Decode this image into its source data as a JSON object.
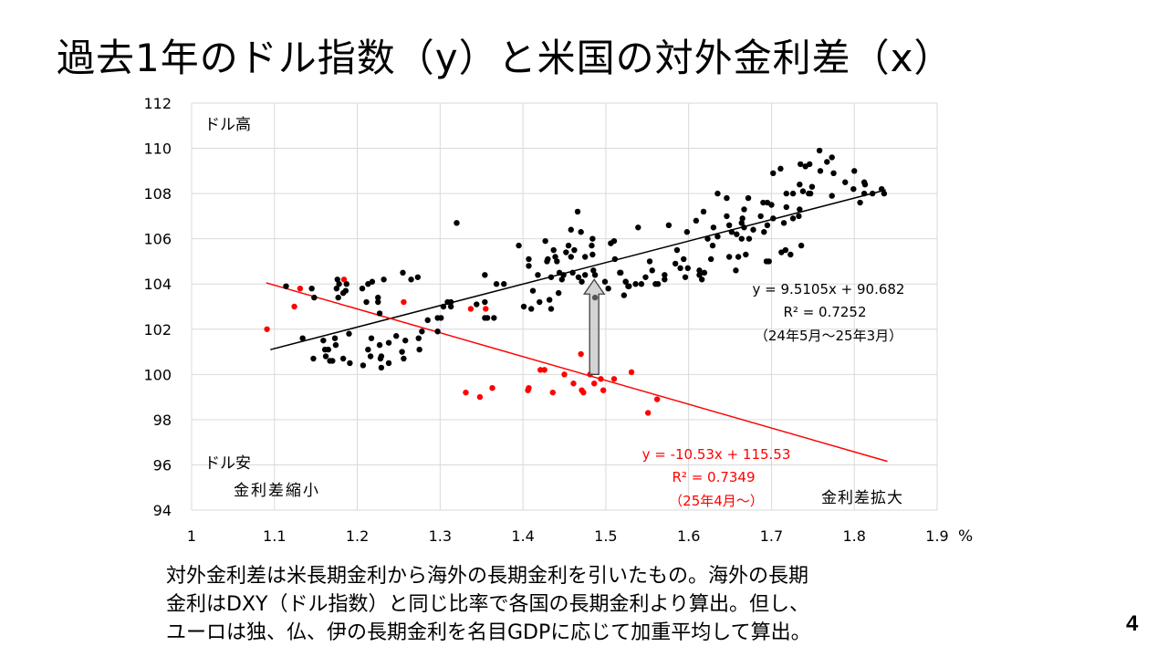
{
  "title": "過去1年のドル指数（y）と米国の対外金利差（x）",
  "note_lines": [
    "対外金利差は米長期金利から海外の長期金利を引いたもの。海外の長期",
    "金利はDXY（ドル指数）と同じ比率で各国の長期金利より算出。但し、",
    "ユーロは独、仏、伊の長期金利を名目GDPに応じて加重平均して算出。"
  ],
  "page_number": "4",
  "chart_data": {
    "type": "scatter",
    "title": "",
    "xlabel": "%",
    "ylabel": "",
    "xlim": [
      1,
      1.9
    ],
    "ylim": [
      94,
      112
    ],
    "grid": true,
    "x_ticks": [
      "1",
      "1.1",
      "1.2",
      "1.3",
      "1.4",
      "1.5",
      "1.6",
      "1.7",
      "1.8",
      "1.9"
    ],
    "y_ticks": [
      "94",
      "96",
      "98",
      "100",
      "102",
      "104",
      "106",
      "108",
      "110",
      "112"
    ],
    "annotations": {
      "top_left": "ドル高",
      "bottom_left": "ドル安",
      "narrowing": "金利差縮小",
      "widening": "金利差拡大"
    },
    "colors": {
      "black_series": "#000000",
      "red_series": "#ff0000",
      "arrow": "#cccccc",
      "grid": "#d9d9d9"
    },
    "series": [
      {
        "name": "24年5月～25年3月",
        "color": "#000000",
        "trendline": {
          "slope": 9.5105,
          "intercept": 90.682,
          "x_range": [
            1.095,
            1.838
          ],
          "equation": "y = 9.5105x + 90.682",
          "r2": "R² = 0.7252",
          "period": "（24年5月～25年3月）"
        },
        "points": [
          [
            1.758,
            109.9
          ],
          [
            1.773,
            109.6
          ],
          [
            1.767,
            109.4
          ],
          [
            1.735,
            109.3
          ],
          [
            1.746,
            109.3
          ],
          [
            1.741,
            109.2
          ],
          [
            1.759,
            109.0
          ],
          [
            1.702,
            108.9
          ],
          [
            1.711,
            109.1
          ],
          [
            1.775,
            108.9
          ],
          [
            1.8,
            109.0
          ],
          [
            1.789,
            108.5
          ],
          [
            1.812,
            108.5
          ],
          [
            1.813,
            108.4
          ],
          [
            1.799,
            108.2
          ],
          [
            1.833,
            108.2
          ],
          [
            1.734,
            108.4
          ],
          [
            1.749,
            108.3
          ],
          [
            1.738,
            108.1
          ],
          [
            1.745,
            108.0
          ],
          [
            1.747,
            108.0
          ],
          [
            1.718,
            108.0
          ],
          [
            1.726,
            108.0
          ],
          [
            1.773,
            107.9
          ],
          [
            1.822,
            108.0
          ],
          [
            1.836,
            108.0
          ],
          [
            1.812,
            108.0
          ],
          [
            1.807,
            107.6
          ],
          [
            1.635,
            108.0
          ],
          [
            1.646,
            107.8
          ],
          [
            1.672,
            107.8
          ],
          [
            1.69,
            107.6
          ],
          [
            1.695,
            107.6
          ],
          [
            1.7,
            107.5
          ],
          [
            1.718,
            107.4
          ],
          [
            1.667,
            107.3
          ],
          [
            1.734,
            107.3
          ],
          [
            1.618,
            107.2
          ],
          [
            1.609,
            106.8
          ],
          [
            1.646,
            107.0
          ],
          [
            1.665,
            106.9
          ],
          [
            1.687,
            107.0
          ],
          [
            1.702,
            106.9
          ],
          [
            1.726,
            106.9
          ],
          [
            1.733,
            107.0
          ],
          [
            1.715,
            106.7
          ],
          [
            1.649,
            106.6
          ],
          [
            1.664,
            106.7
          ],
          [
            1.695,
            106.6
          ],
          [
            1.63,
            106.5
          ],
          [
            1.539,
            106.5
          ],
          [
            1.576,
            106.6
          ],
          [
            1.598,
            106.3
          ],
          [
            1.667,
            106.5
          ],
          [
            1.678,
            106.4
          ],
          [
            1.652,
            106.3
          ],
          [
            1.658,
            106.2
          ],
          [
            1.691,
            106.3
          ],
          [
            1.623,
            106.0
          ],
          [
            1.635,
            106.1
          ],
          [
            1.664,
            106.0
          ],
          [
            1.673,
            106.0
          ],
          [
            1.629,
            105.7
          ],
          [
            1.586,
            105.5
          ],
          [
            1.736,
            105.7
          ],
          [
            1.712,
            105.4
          ],
          [
            1.717,
            105.5
          ],
          [
            1.723,
            105.3
          ],
          [
            1.649,
            105.2
          ],
          [
            1.66,
            105.2
          ],
          [
            1.669,
            105.3
          ],
          [
            1.627,
            105.1
          ],
          [
            1.694,
            105.0
          ],
          [
            1.697,
            105.0
          ],
          [
            1.657,
            104.6
          ],
          [
            1.553,
            105.0
          ],
          [
            1.556,
            104.6
          ],
          [
            1.584,
            104.9
          ],
          [
            1.594,
            105.1
          ],
          [
            1.59,
            104.7
          ],
          [
            1.599,
            104.7
          ],
          [
            1.596,
            104.3
          ],
          [
            1.613,
            104.6
          ],
          [
            1.619,
            104.5
          ],
          [
            1.613,
            104.4
          ],
          [
            1.616,
            104.2
          ],
          [
            1.571,
            104.4
          ],
          [
            1.571,
            104.2
          ],
          [
            1.548,
            104.3
          ],
          [
            1.518,
            104.5
          ],
          [
            1.524,
            104.1
          ],
          [
            1.528,
            103.9
          ],
          [
            1.536,
            104.0
          ],
          [
            1.543,
            104.0
          ],
          [
            1.56,
            104.0
          ],
          [
            1.563,
            104.0
          ],
          [
            1.114,
            103.9
          ],
          [
            1.145,
            103.8
          ],
          [
            1.148,
            103.4
          ],
          [
            1.176,
            104.2
          ],
          [
            1.178,
            104.0
          ],
          [
            1.175,
            103.8
          ],
          [
            1.187,
            104.0
          ],
          [
            1.186,
            103.7
          ],
          [
            1.183,
            103.6
          ],
          [
            1.177,
            103.4
          ],
          [
            1.206,
            103.8
          ],
          [
            1.213,
            104.0
          ],
          [
            1.218,
            104.1
          ],
          [
            1.232,
            104.2
          ],
          [
            1.255,
            104.5
          ],
          [
            1.265,
            104.2
          ],
          [
            1.273,
            104.3
          ],
          [
            1.211,
            103.2
          ],
          [
            1.225,
            103.4
          ],
          [
            1.225,
            103.2
          ],
          [
            1.227,
            102.7
          ],
          [
            1.32,
            106.7
          ],
          [
            1.354,
            104.4
          ],
          [
            1.368,
            104.0
          ],
          [
            1.377,
            104.0
          ],
          [
            1.395,
            105.7
          ],
          [
            1.407,
            105.1
          ],
          [
            1.407,
            104.8
          ],
          [
            1.418,
            104.4
          ],
          [
            1.427,
            105.9
          ],
          [
            1.43,
            105.1
          ],
          [
            1.429,
            105.0
          ],
          [
            1.437,
            105.5
          ],
          [
            1.439,
            105.2
          ],
          [
            1.441,
            105.0
          ],
          [
            1.434,
            104.3
          ],
          [
            1.444,
            104.5
          ],
          [
            1.449,
            104.4
          ],
          [
            1.447,
            104.2
          ],
          [
            1.458,
            106.4
          ],
          [
            1.47,
            106.3
          ],
          [
            1.466,
            107.2
          ],
          [
            1.455,
            105.7
          ],
          [
            1.462,
            105.5
          ],
          [
            1.452,
            105.4
          ],
          [
            1.458,
            105.2
          ],
          [
            1.484,
            106.0
          ],
          [
            1.483,
            105.7
          ],
          [
            1.484,
            105.3
          ],
          [
            1.475,
            105.2
          ],
          [
            1.46,
            104.5
          ],
          [
            1.467,
            104.3
          ],
          [
            1.475,
            104.4
          ],
          [
            1.485,
            104.6
          ],
          [
            1.487,
            104.4
          ],
          [
            1.471,
            104.1
          ],
          [
            1.499,
            104.1
          ],
          [
            1.503,
            103.8
          ],
          [
            1.506,
            105.8
          ],
          [
            1.51,
            105.9
          ],
          [
            1.511,
            105.1
          ],
          [
            1.517,
            104.5
          ],
          [
            1.524,
            104.1
          ],
          [
            1.527,
            103.9
          ],
          [
            1.522,
            103.5
          ],
          [
            1.412,
            103.7
          ],
          [
            1.42,
            103.2
          ],
          [
            1.432,
            103.3
          ],
          [
            1.434,
            102.9
          ],
          [
            1.443,
            103.6
          ],
          [
            1.401,
            103.0
          ],
          [
            1.41,
            102.9
          ],
          [
            1.354,
            103.2
          ],
          [
            1.344,
            103.1
          ],
          [
            1.313,
            103.2
          ],
          [
            1.309,
            103.2
          ],
          [
            1.304,
            103.0
          ],
          [
            1.313,
            103.0
          ],
          [
            1.297,
            102.5
          ],
          [
            1.301,
            102.5
          ],
          [
            1.285,
            102.4
          ],
          [
            1.354,
            102.5
          ],
          [
            1.365,
            102.5
          ],
          [
            1.357,
            102.5
          ],
          [
            1.297,
            101.9
          ],
          [
            1.278,
            101.9
          ],
          [
            1.274,
            101.6
          ],
          [
            1.275,
            101.1
          ],
          [
            1.247,
            101.7
          ],
          [
            1.258,
            101.5
          ],
          [
            1.254,
            101.0
          ],
          [
            1.256,
            100.7
          ],
          [
            1.238,
            101.4
          ],
          [
            1.238,
            100.5
          ],
          [
            1.217,
            101.6
          ],
          [
            1.227,
            101.3
          ],
          [
            1.213,
            101.1
          ],
          [
            1.216,
            100.8
          ],
          [
            1.229,
            100.8
          ],
          [
            1.228,
            100.7
          ],
          [
            1.229,
            100.3
          ],
          [
            1.207,
            100.4
          ],
          [
            1.19,
            101.8
          ],
          [
            1.173,
            101.6
          ],
          [
            1.174,
            101.3
          ],
          [
            1.159,
            101.5
          ],
          [
            1.165,
            101.1
          ],
          [
            1.161,
            101.1
          ],
          [
            1.162,
            100.8
          ],
          [
            1.167,
            100.6
          ],
          [
            1.17,
            100.6
          ],
          [
            1.183,
            100.7
          ],
          [
            1.191,
            100.5
          ],
          [
            1.147,
            100.7
          ],
          [
            1.134,
            101.6
          ]
        ],
        "highlighted_point": [
          1.487,
          103.4
        ]
      },
      {
        "name": "25年4月～",
        "color": "#ff0000",
        "trendline": {
          "slope": -10.53,
          "intercept": 115.53,
          "x_range": [
            1.09,
            1.84
          ],
          "equation": "y = -10.53x + 115.53",
          "r2": "R² = 0.7349",
          "period": "（25年4月～）"
        },
        "points": [
          [
            1.091,
            102.0
          ],
          [
            1.124,
            103.0
          ],
          [
            1.131,
            103.8
          ],
          [
            1.184,
            104.2
          ],
          [
            1.256,
            103.2
          ],
          [
            1.337,
            102.9
          ],
          [
            1.355,
            102.9
          ],
          [
            1.331,
            99.2
          ],
          [
            1.348,
            99.0
          ],
          [
            1.363,
            99.4
          ],
          [
            1.406,
            99.3
          ],
          [
            1.407,
            99.4
          ],
          [
            1.421,
            100.2
          ],
          [
            1.426,
            100.2
          ],
          [
            1.436,
            99.2
          ],
          [
            1.45,
            100.0
          ],
          [
            1.461,
            99.6
          ],
          [
            1.47,
            100.9
          ],
          [
            1.471,
            99.3
          ],
          [
            1.473,
            99.2
          ],
          [
            1.481,
            100.0
          ],
          [
            1.494,
            99.8
          ],
          [
            1.486,
            99.6
          ],
          [
            1.497,
            99.3
          ],
          [
            1.51,
            99.8
          ],
          [
            1.531,
            100.1
          ],
          [
            1.551,
            98.3
          ],
          [
            1.562,
            98.9
          ]
        ]
      }
    ],
    "arrow": {
      "x": 1.486,
      "from_y": 100.0,
      "to_y": 104.2
    }
  }
}
